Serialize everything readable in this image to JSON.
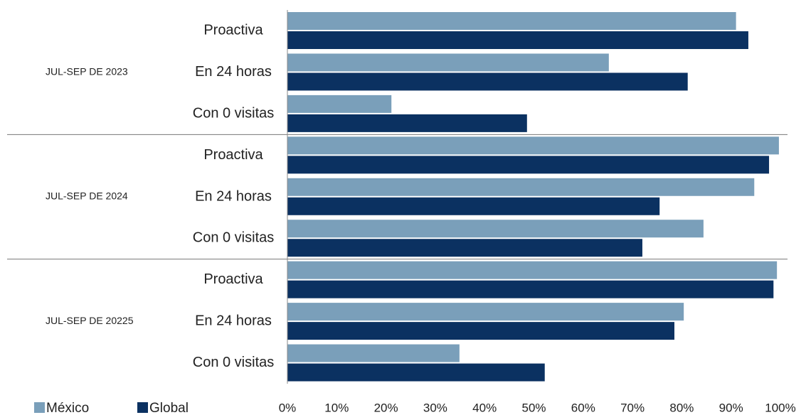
{
  "chart_data": {
    "type": "bar",
    "orientation": "horizontal",
    "groups": [
      "JUL-SEP DE 2023",
      "JUL-SEP DE 2024",
      "JUL-SEP DE 20225"
    ],
    "categories": [
      "Proactiva",
      "En 24 horas",
      "Con 0 visitas",
      "Proactiva",
      "En 24 horas",
      "Con 0 visitas",
      "Proactiva",
      "En 24 horas",
      "Con 0 visitas"
    ],
    "series": [
      {
        "name": "México",
        "color": "#7a9fba",
        "values": [
          91,
          65.2,
          21.1,
          99.7,
          94.7,
          84.4,
          99.3,
          80.4,
          34.9
        ]
      },
      {
        "name": "Global",
        "color": "#0b3161",
        "values": [
          93.5,
          81.2,
          48.6,
          97.7,
          75.5,
          72,
          98.6,
          78.5,
          52.2
        ]
      }
    ],
    "xlim": [
      0,
      100
    ],
    "xticks": [
      {
        "value": 0,
        "label": "0%"
      },
      {
        "value": 10,
        "label": "10%"
      },
      {
        "value": 20,
        "label": "20%"
      },
      {
        "value": 30,
        "label": "30%"
      },
      {
        "value": 40,
        "label": "40%"
      },
      {
        "value": 50,
        "label": "50%"
      },
      {
        "value": 60,
        "label": "60%"
      },
      {
        "value": 70,
        "label": "70%"
      },
      {
        "value": 80,
        "label": "80%"
      },
      {
        "value": 90,
        "label": "90%"
      },
      {
        "value": 100,
        "label": "100%"
      }
    ],
    "grid": false,
    "legend": "bottom-left"
  }
}
